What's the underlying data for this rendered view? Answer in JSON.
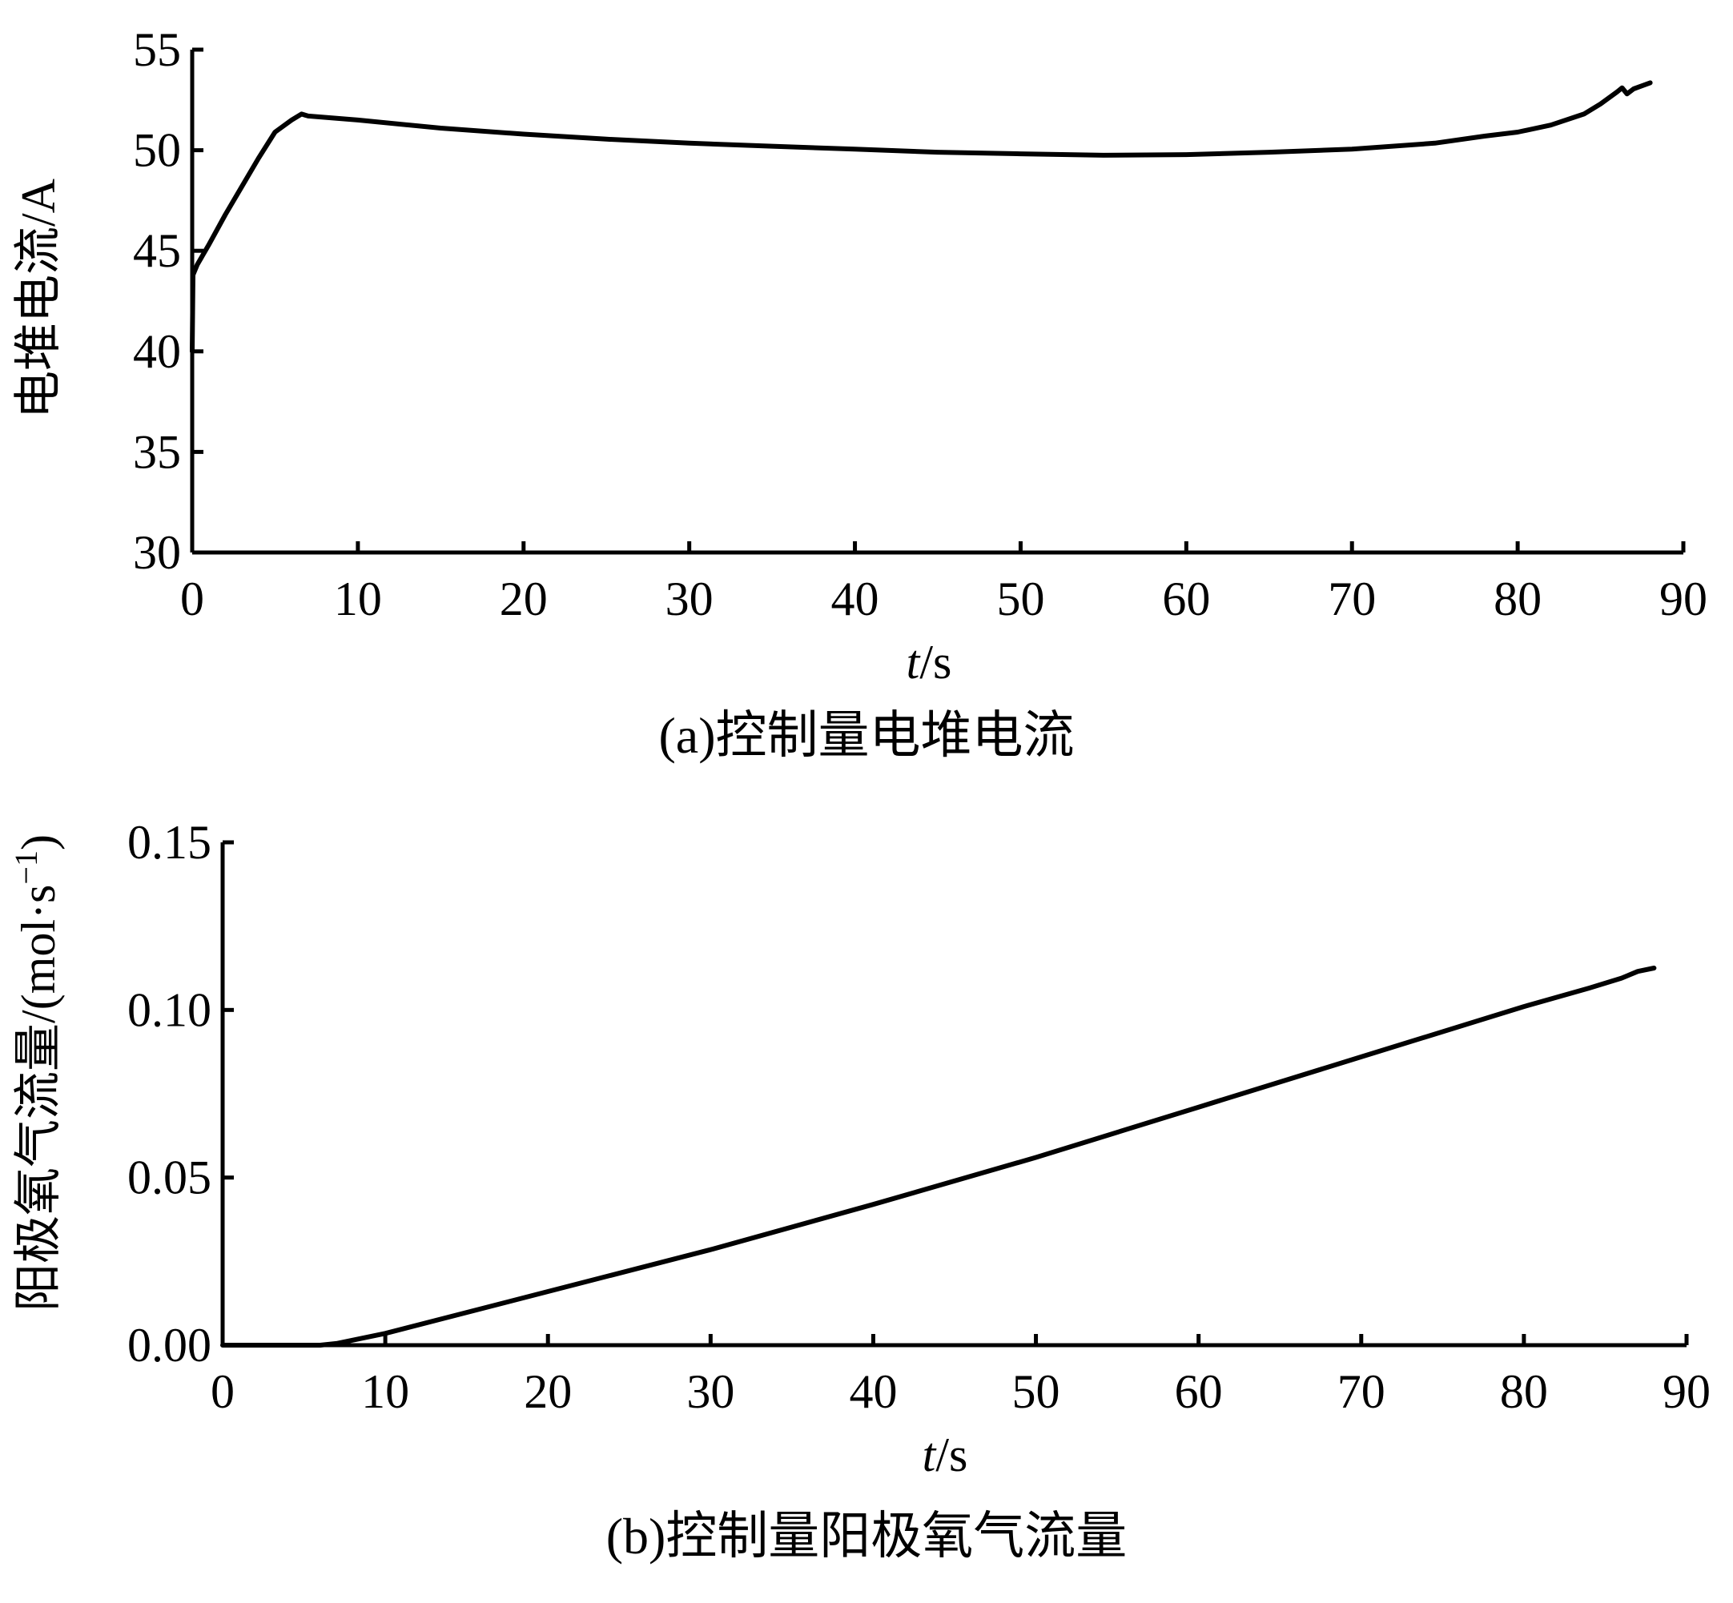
{
  "chart_data": [
    {
      "type": "line",
      "caption": "(a)控制量电堆电流",
      "xlabel_italic": "t",
      "xlabel_unit": "/s",
      "ylabel": "电堆电流/A",
      "xlim": [
        0,
        90
      ],
      "ylim": [
        30,
        55
      ],
      "xticks": [
        "0",
        "10",
        "20",
        "30",
        "40",
        "50",
        "60",
        "70",
        "80",
        "90"
      ],
      "yticks": [
        "30",
        "35",
        "40",
        "45",
        "50",
        "55"
      ],
      "grid": false,
      "series": [
        {
          "x": [
            0,
            0.05,
            0.3,
            1,
            2,
            3,
            4,
            5,
            6,
            6.6,
            7,
            10,
            15,
            20,
            25,
            30,
            35,
            40,
            45,
            50,
            55,
            60,
            65,
            70,
            75,
            78,
            80,
            82,
            84,
            85,
            86,
            86.3,
            86.6,
            87,
            87.5,
            88
          ],
          "y": [
            40,
            43.8,
            44.3,
            45.3,
            46.8,
            48.2,
            49.6,
            50.9,
            51.5,
            51.8,
            51.7,
            51.5,
            51.1,
            50.8,
            50.55,
            50.35,
            50.2,
            50.05,
            49.9,
            49.82,
            49.75,
            49.78,
            49.9,
            50.05,
            50.35,
            50.7,
            50.9,
            51.25,
            51.8,
            52.3,
            52.9,
            53.1,
            52.8,
            53.05,
            53.2,
            53.35
          ]
        }
      ]
    },
    {
      "type": "line",
      "caption": "(b)控制量阳极氧气流量",
      "xlabel_italic": "t",
      "xlabel_unit": "/s",
      "ylabel_main": "阳极氧气流量/(mol·s",
      "ylabel_sup": "−1",
      "ylabel_close": ")",
      "xlim": [
        0,
        90
      ],
      "ylim": [
        0,
        0.15
      ],
      "xticks": [
        "0",
        "10",
        "20",
        "30",
        "40",
        "50",
        "60",
        "70",
        "80",
        "90"
      ],
      "yticks": [
        "0.00",
        "0.05",
        "0.10",
        "0.15"
      ],
      "grid": false,
      "series": [
        {
          "x": [
            0,
            6,
            7,
            10,
            20,
            30,
            40,
            50,
            60,
            70,
            80,
            84,
            86,
            87,
            88
          ],
          "y": [
            0,
            0,
            0.0005,
            0.0035,
            0.016,
            0.0285,
            0.042,
            0.056,
            0.071,
            0.086,
            0.101,
            0.1065,
            0.1095,
            0.1115,
            0.1125
          ]
        }
      ]
    }
  ]
}
